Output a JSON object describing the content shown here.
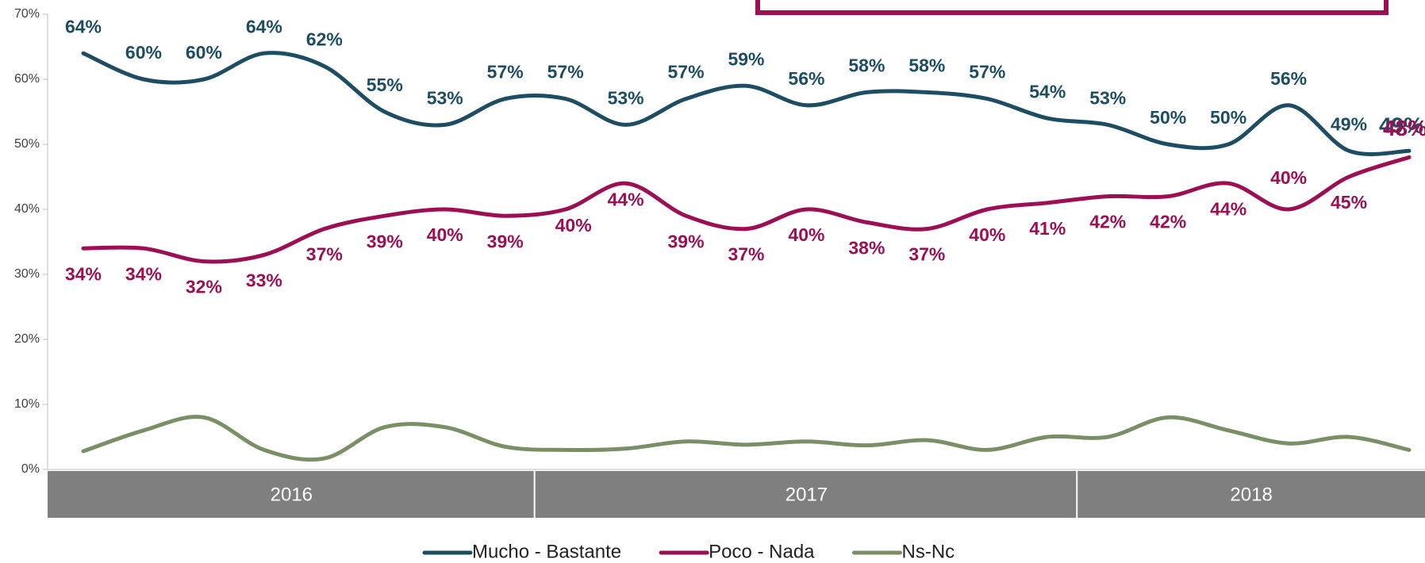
{
  "chart_data": {
    "type": "line",
    "categories": [
      null,
      null,
      null,
      null,
      null,
      null,
      null,
      null,
      null,
      null,
      null,
      null,
      null,
      null,
      null,
      null,
      null,
      null,
      null,
      null,
      null,
      null,
      null
    ],
    "x_groups": [
      {
        "label": "2016",
        "span": 8
      },
      {
        "label": "2017",
        "span": 9
      },
      {
        "label": "2018",
        "span": 6
      }
    ],
    "ylim": [
      0,
      70
    ],
    "yticks": [
      {
        "value": 0,
        "label": "0%"
      },
      {
        "value": 10,
        "label": "10%"
      },
      {
        "value": 20,
        "label": "20%"
      },
      {
        "value": 30,
        "label": "30%"
      },
      {
        "value": 40,
        "label": "40%"
      },
      {
        "value": 50,
        "label": "50%"
      },
      {
        "value": 60,
        "label": "60%"
      },
      {
        "value": 70,
        "label": "70%"
      }
    ],
    "legend": "bottom",
    "series": [
      {
        "name": "Mucho - Bastante",
        "color": "#1c4d62",
        "values": [
          64,
          60,
          60,
          64,
          62,
          55,
          53,
          57,
          57,
          53,
          57,
          59,
          56,
          58,
          58,
          57,
          54,
          53,
          50,
          50,
          56,
          49,
          49
        ],
        "value_labels": [
          "64%",
          "60%",
          "60%",
          "64%",
          "62%",
          "55%",
          "53%",
          "57%",
          "57%",
          "53%",
          "57%",
          "59%",
          "56%",
          "58%",
          "58%",
          "57%",
          "54%",
          "53%",
          "50%",
          "50%",
          "56%",
          "49%",
          "49%"
        ]
      },
      {
        "name": "Poco - Nada",
        "color": "#9c0f54",
        "values": [
          34,
          34,
          32,
          33,
          37,
          39,
          40,
          39,
          40,
          44,
          39,
          37,
          40,
          38,
          37,
          40,
          41,
          42,
          42,
          44,
          40,
          45,
          48
        ],
        "value_labels": [
          "34%",
          "34%",
          "32%",
          "33%",
          "37%",
          "39%",
          "40%",
          "39%",
          "40%",
          "44%",
          "39%",
          "37%",
          "40%",
          "38%",
          "37%",
          "40%",
          "41%",
          "42%",
          "42%",
          "44%",
          "40%",
          "45%",
          "48%"
        ]
      },
      {
        "name": "Ns-Nc",
        "color": "#7b8f66",
        "values": [
          2.8,
          6,
          8,
          3,
          1.7,
          6.5,
          6.5,
          3.5,
          3,
          3.2,
          4.3,
          3.8,
          4.3,
          3.7,
          4.5,
          3,
          5,
          5,
          8,
          6,
          4,
          5,
          3
        ]
      }
    ]
  }
}
